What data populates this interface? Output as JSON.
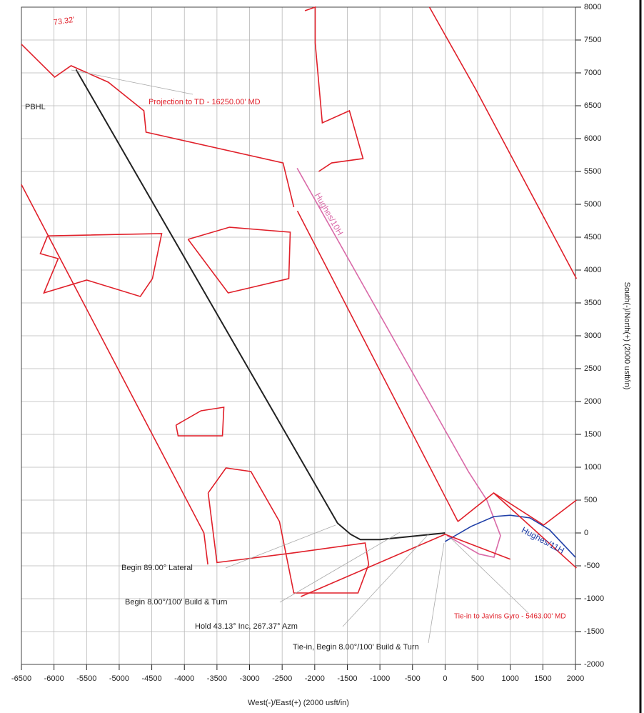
{
  "chart_data": {
    "type": "line",
    "x_label": "West(-)/East(+) (2000 usft/in)",
    "y_label": "South(-)/North(+) (2000 usft/in)",
    "xlim": [
      -6500,
      2000
    ],
    "ylim": [
      -2000,
      8000
    ],
    "xticks": [
      -6500,
      -6000,
      -5500,
      -5000,
      -4500,
      -4000,
      -3500,
      -3000,
      -2500,
      -2000,
      -1500,
      -1000,
      -500,
      0,
      500,
      1000,
      1500,
      2000
    ],
    "yticks": [
      -2000,
      -1500,
      -1000,
      -500,
      0,
      500,
      1000,
      1500,
      2000,
      2500,
      3000,
      3500,
      4000,
      4500,
      5000,
      5500,
      6000,
      6500,
      7000,
      7500,
      8000
    ],
    "grid": true,
    "series": [
      {
        "color": "#222222",
        "x": [
          0,
          -500,
          -1000,
          -1300,
          -1450,
          -1650,
          -5662
        ],
        "y": [
          0,
          -50,
          -100,
          -100,
          -20,
          150,
          7050
        ]
      },
      {
        "name": "Hughes/10H",
        "color": "#d96aa8",
        "x": [
          -2270,
          360,
          640,
          850,
          750,
          520,
          30
        ],
        "y": [
          5550,
          930,
          500,
          -40,
          -370,
          -320,
          -40
        ]
      },
      {
        "name": "Hughes/11H",
        "color": "#1f3fa8",
        "x": [
          0,
          400,
          750,
          1000,
          1300,
          1600,
          2000
        ],
        "y": [
          -130,
          100,
          250,
          270,
          230,
          50,
          -370
        ]
      },
      {
        "color": "#e0202a",
        "x": [
          -240,
          470,
          2015
        ],
        "y": [
          8000,
          6750,
          3870
        ]
      },
      {
        "color": "#e0202a",
        "x": [
          -6500,
          -3700,
          -3640
        ],
        "y": [
          5300,
          0,
          -480
        ]
      },
      {
        "color": "#e0202a",
        "x": [
          -2266,
          197
        ],
        "y": [
          4900,
          174
        ]
      },
      {
        "color": "#e0202a",
        "x": [
          -6500,
          -5990,
          -5738,
          -5168,
          -4621,
          -4588,
          -2486,
          -2321
        ],
        "y": [
          7435,
          6935,
          7109,
          6859,
          6424,
          6098,
          5630,
          4957
        ]
      },
      {
        "color": "#e0202a",
        "x": [
          -2151,
          -1993,
          -1993,
          -1884,
          -1468,
          -1259,
          -1741,
          -1939
        ],
        "y": [
          7946,
          8000,
          7457,
          6240,
          6424,
          5696,
          5630,
          5500
        ]
      },
      {
        "color": "#e0202a",
        "x": [
          -6100,
          -4348,
          -4490,
          -4676,
          -5498,
          -6155,
          -5936,
          -6210,
          -6100
        ],
        "y": [
          4520,
          4555,
          3870,
          3598,
          3848,
          3652,
          4174,
          4250,
          4520
        ]
      },
      {
        "color": "#e0202a",
        "x": [
          -3943,
          -3307,
          -2376,
          -2398,
          -3328,
          -3943
        ],
        "y": [
          4467,
          4652,
          4576,
          3870,
          3652,
          4467
        ]
      },
      {
        "color": "#e0202a",
        "x": [
          -4128,
          -3745,
          -3394,
          -3416,
          -4096,
          -4128
        ],
        "y": [
          1641,
          1859,
          1913,
          1478,
          1478,
          1641
        ]
      },
      {
        "color": "#e0202a",
        "x": [
          -3635,
          -3362,
          -2979,
          -2541,
          -2321,
          -1336,
          -1172,
          -1227,
          -2300,
          -3500,
          -3635
        ],
        "y": [
          609,
          989,
          935,
          174,
          -913,
          -913,
          -478,
          -152,
          -300,
          -450,
          609
        ]
      },
      {
        "color": "#e0202a",
        "x": [
          197,
          745,
          1511,
          2015
        ],
        "y": [
          174,
          609,
          120,
          500
        ]
      },
      {
        "color": "#e0202a",
        "x": [
          745,
          2015
        ],
        "y": [
          609,
          -533
        ]
      },
      {
        "color": "#e0202a",
        "x": [
          -2212,
          0,
          1000
        ],
        "y": [
          -967,
          -20,
          -400
        ]
      }
    ],
    "annotations": [
      "73.32'",
      "PBHL",
      "Projection to TD - 16250.00' MD",
      "Begin 89.00° Lateral",
      "Begin 8.00°/100' Build & Turn",
      "Hold 43.13° Inc, 267.37° Azm",
      "Tie-in, Begin 8.00°/100' Build & Turn",
      "Tie-in to Javins Gyro - 5463.00' MD"
    ]
  }
}
